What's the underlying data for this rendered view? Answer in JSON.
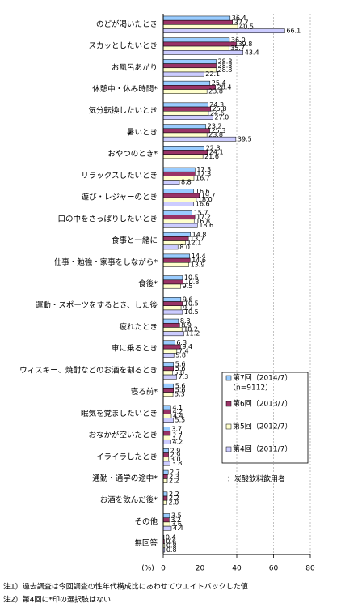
{
  "chart_data": {
    "type": "hbar",
    "categories": [
      "のどが渇いたとき",
      "スカッとしたいとき",
      "お風呂あがり",
      "休憩中・休み時間*",
      "気分転換したいとき",
      "暑いとき",
      "おやつのとき*",
      "リラックスしたいとき",
      "遊び・レジャーのとき",
      "口の中をさっぱりしたいとき",
      "食事と一緒に",
      "仕事・勉強・家事をしながら*",
      "食後*",
      "運動・スポーツをするとき、した後",
      "疲れたとき",
      "車に乗るとき",
      "ウィスキー、焼酎などのお酒を割るとき",
      "寝る前*",
      "眠気を覚ましたいとき",
      "おなかが空いたとき",
      "イライラしたとき",
      "通勤・通学の途中*",
      "お酒を飲んだ後*",
      "その他",
      "無回答"
    ],
    "series": [
      {
        "name": "第7回（2014/7）",
        "color": "#99ccff",
        "values": [
          36.4,
          36.0,
          28.8,
          25.4,
          24.3,
          23.2,
          22.3,
          17.3,
          16.6,
          15.7,
          14.8,
          14.4,
          10.5,
          9.6,
          8.3,
          6.3,
          5.6,
          5.6,
          4.1,
          3.7,
          2.9,
          2.7,
          2.2,
          3.5,
          0.4
        ],
        "value_labels": [
          "36.4",
          "36.0",
          "28.8",
          "25.4",
          "24.3",
          "23.2",
          "22.3",
          "17.3",
          "16.6",
          "15.7",
          "14.8",
          "14.4",
          "10.5",
          "9.6",
          "8.3",
          "6.3",
          "5.6",
          "5.6",
          "4.1",
          "3.7",
          "2.9",
          "2.7",
          "2.2",
          "3.5",
          "0.4"
        ]
      },
      {
        "name": "第6回（2013/7）",
        "color": "#993366",
        "values": [
          37.7,
          39.8,
          28.8,
          28.4,
          25.8,
          25.3,
          24.1,
          17.3,
          19.7,
          17.2,
          13.7,
          14.6,
          10.8,
          10.5,
          8.9,
          9.4,
          5.6,
          5.6,
          4.2,
          3.9,
          2.9,
          2.3,
          2.2,
          3.2,
          0.6
        ],
        "value_labels": [
          "37.7",
          "39.8",
          "28.8",
          "28.4",
          "25.8",
          "25.3",
          "24.1",
          "17.3",
          "19.7",
          "17.2",
          "13.7",
          "14.6",
          "10.8",
          "10.5",
          "8.9",
          "9.4",
          "5.6",
          "5.6",
          "4.2",
          "3.9",
          "2.9",
          "2.3",
          "2.2",
          "3.2",
          "0.6"
        ]
      },
      {
        "name": "第5回（2012/7）",
        "color": "#ffffcc",
        "values": [
          40.5,
          35.7,
          28.8,
          23.8,
          24.6,
          23.8,
          21.6,
          16.7,
          18.0,
          16.8,
          12.1,
          13.9,
          9.5,
          9.7,
          10.2,
          7.4,
          5.0,
          5.3,
          4.4,
          3.7,
          3.0,
          2.2,
          2.0,
          3.6,
          0.8
        ],
        "value_labels": [
          "40.5",
          "35.7",
          "28.8",
          "23.8",
          "24.6",
          "23.8",
          "21.6",
          "16.7",
          "18.0",
          "16.8",
          "12.1",
          "13.9",
          "9.5",
          "9.7",
          "10.2",
          "7.4",
          "5.0",
          "5.3",
          "4.4",
          "3.7",
          "3.0",
          "2.2",
          "2.0",
          "3.6",
          "0.8"
        ]
      },
      {
        "name": "第4回（2011/7）",
        "color": "#ccccff",
        "values": [
          66.1,
          43.4,
          22.1,
          null,
          27.0,
          39.5,
          null,
          8.8,
          16.6,
          18.6,
          8.0,
          null,
          null,
          10.5,
          11.2,
          5.8,
          7.3,
          null,
          5.5,
          4.2,
          3.8,
          null,
          null,
          4.4,
          0.8
        ],
        "value_labels": [
          "66.1",
          "43.4",
          "22.1",
          null,
          "27.0",
          "39.5",
          null,
          "8.8",
          "16.6",
          "18.6",
          "8.0",
          null,
          null,
          "10.5",
          "11.2",
          "5.8",
          "7.3",
          null,
          "5.5",
          "4.2",
          "3.8",
          null,
          null,
          "4.4",
          "0.8"
        ]
      }
    ],
    "legend_note": "（n=9112）",
    "respondents": "：炭酸飲料飲用者",
    "x_label": "(%)",
    "xlim": [
      0,
      80
    ],
    "xticks": [
      0,
      20,
      40,
      60,
      80
    ],
    "grid": true,
    "footnotes": [
      "注1）過去調査は今回調査の性年代構成比にあわせてウエイトバックした値",
      "注2）第4回に*印の選択肢はない"
    ]
  }
}
